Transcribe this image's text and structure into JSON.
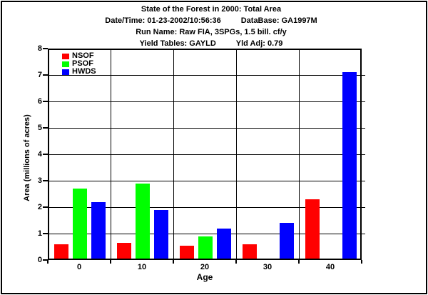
{
  "header": {
    "title": "State of the Forest in 2000: Total Area",
    "datetime": "Date/Time: 01-23-2002/10:56:36",
    "database": "DataBase: GA1997M",
    "run_name": "Run Name: Raw FIA, 3SPGs, 1.5 bill. cf/y",
    "yield_tables": "Yield Tables: GAYLD",
    "yld_adj": "Yld Adj: 0.79"
  },
  "chart_data": {
    "type": "bar",
    "title": "State of the Forest in 2000: Total Area",
    "categories": [
      "0",
      "10",
      "20",
      "30",
      "40"
    ],
    "series": [
      {
        "name": "NSOF",
        "color": "#ff0000",
        "values": [
          0.6,
          0.65,
          0.55,
          0.6,
          2.3
        ]
      },
      {
        "name": "PSOF",
        "color": "#00ff00",
        "values": [
          2.7,
          2.9,
          0.9,
          0,
          0
        ]
      },
      {
        "name": "HWDS",
        "color": "#0000ff",
        "values": [
          2.2,
          1.9,
          1.2,
          1.4,
          7.1
        ]
      }
    ],
    "xlabel": "Age",
    "ylabel": "Area (millions of acres)",
    "ylim": [
      0,
      8
    ],
    "ytick_step": 1,
    "grid": true,
    "legend_position": "top-left",
    "axis_color": "#000000",
    "background": "#ffffff"
  }
}
